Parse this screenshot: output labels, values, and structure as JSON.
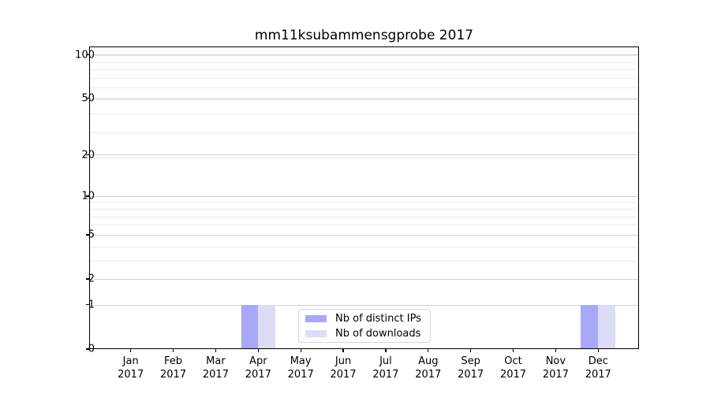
{
  "title": "mm11ksubammensgprobe 2017",
  "chart_data": {
    "type": "bar",
    "title": "mm11ksubammensgprobe 2017",
    "months": [
      "Jan",
      "Feb",
      "Mar",
      "Apr",
      "May",
      "Jun",
      "Jul",
      "Aug",
      "Sep",
      "Oct",
      "Nov",
      "Dec"
    ],
    "year": "2017",
    "series": [
      {
        "name": "Nb of distinct IPs",
        "color": "#a8a8f8",
        "values": [
          0,
          0,
          0,
          1,
          0,
          0,
          0,
          0,
          0,
          0,
          0,
          1
        ]
      },
      {
        "name": "Nb of downloads",
        "color": "#dcdcf8",
        "values": [
          0,
          0,
          0,
          1,
          0,
          0,
          0,
          0,
          0,
          0,
          0,
          1
        ]
      }
    ],
    "y_ticks": [
      0,
      1,
      2,
      5,
      10,
      20,
      50,
      100
    ],
    "y_tick_labels": [
      "0",
      "1",
      "2",
      "5",
      "10",
      "20",
      "50",
      "100"
    ],
    "y_scale": "log1p",
    "ylim": [
      0,
      114
    ],
    "xlabel": "",
    "ylabel": "",
    "grid": "both",
    "legend_position": "lower center"
  },
  "colors": {
    "background": "#ffffff",
    "axis": "#000000",
    "grid_major": "#d2d2d2",
    "grid_minor": "#ebebeb",
    "legend_border": "#d5d5d5"
  }
}
